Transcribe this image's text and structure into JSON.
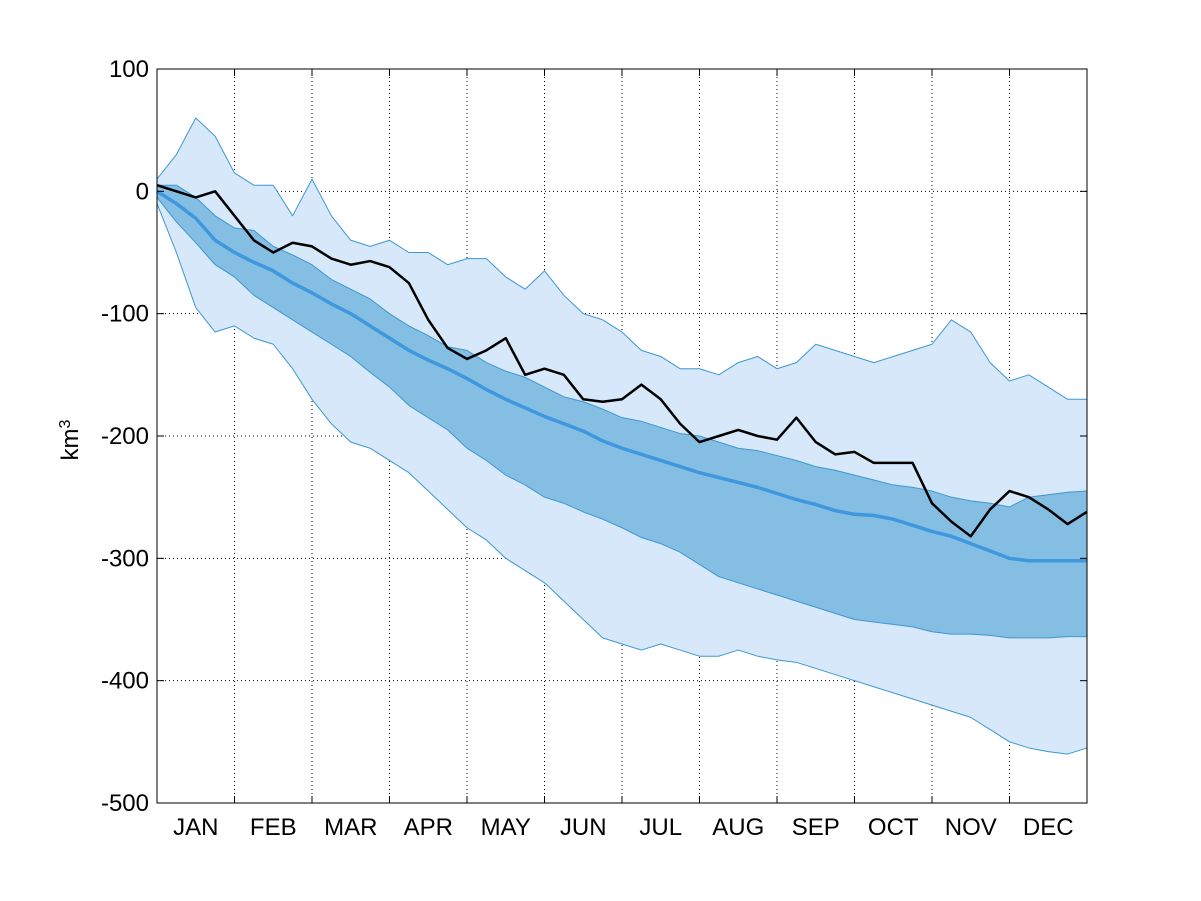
{
  "chart_data": {
    "type": "area",
    "ylabel": "km",
    "ylabel_superscript": "3",
    "ylim": [
      -500,
      100
    ],
    "yticks": [
      100,
      0,
      -100,
      -200,
      -300,
      -400,
      -500
    ],
    "xlim": [
      0,
      12
    ],
    "month_labels": [
      "JAN",
      "FEB",
      "MAR",
      "APR",
      "MAY",
      "JUN",
      "JUL",
      "AUG",
      "SEP",
      "OCT",
      "NOV",
      "DEC"
    ],
    "grid": true,
    "colors": {
      "outer_band": "#d6e8f9",
      "inner_band": "#85bee3",
      "band_edge": "#3e97d1",
      "mean": "#3f97dd",
      "current": "#000000"
    },
    "series": {
      "x": [
        0,
        0.25,
        0.5,
        0.75,
        1.0,
        1.25,
        1.5,
        1.75,
        2.0,
        2.25,
        2.5,
        2.75,
        3.0,
        3.25,
        3.5,
        3.75,
        4.0,
        4.25,
        4.5,
        4.75,
        5.0,
        5.25,
        5.5,
        5.75,
        6.0,
        6.25,
        6.5,
        6.75,
        7.0,
        7.25,
        7.5,
        7.75,
        8.0,
        8.25,
        8.5,
        8.75,
        9.0,
        9.25,
        9.5,
        9.75,
        10.0,
        10.25,
        10.5,
        10.75,
        11.0,
        11.25,
        11.5,
        11.75,
        12.0
      ],
      "mean": [
        0,
        -10,
        -22,
        -40,
        -50,
        -58,
        -65,
        -75,
        -83,
        -92,
        -100,
        -110,
        -120,
        -130,
        -138,
        -145,
        -153,
        -162,
        -170,
        -177,
        -184,
        -190,
        -196,
        -204,
        -210,
        -215,
        -220,
        -225,
        -230,
        -234,
        -238,
        -242,
        -247,
        -252,
        -256,
        -261,
        -264,
        -265,
        -268,
        -273,
        -278,
        -282,
        -288,
        -294,
        -300,
        -302,
        -302,
        -302,
        -302
      ],
      "current": [
        5,
        0,
        -5,
        0,
        -20,
        -40,
        -50,
        -42,
        -45,
        -55,
        -60,
        -57,
        -62,
        -75,
        -105,
        -128,
        -137,
        -130,
        -120,
        -150,
        -145,
        -150,
        -170,
        -172,
        -170,
        -158,
        -170,
        -190,
        -205,
        -200,
        -195,
        -200,
        -203,
        -185,
        -205,
        -215,
        -213,
        -222,
        -222,
        -222,
        -255,
        -270,
        -282,
        -260,
        -245,
        -250,
        -260,
        -272,
        -262
      ],
      "inner_upper": [
        5,
        5,
        -5,
        -20,
        -30,
        -32,
        -45,
        -52,
        -60,
        -72,
        -80,
        -88,
        -100,
        -110,
        -118,
        -127,
        -130,
        -140,
        -147,
        -152,
        -160,
        -168,
        -172,
        -178,
        -185,
        -188,
        -193,
        -198,
        -200,
        -205,
        -210,
        -212,
        -216,
        -220,
        -225,
        -228,
        -232,
        -236,
        -240,
        -242,
        -245,
        -250,
        -253,
        -255,
        -258,
        -250,
        -248,
        -246,
        -245
      ],
      "inner_lower": [
        -5,
        -25,
        -42,
        -60,
        -70,
        -85,
        -95,
        -105,
        -115,
        -125,
        -135,
        -148,
        -160,
        -175,
        -185,
        -195,
        -210,
        -220,
        -232,
        -240,
        -250,
        -255,
        -262,
        -268,
        -275,
        -283,
        -288,
        -295,
        -305,
        -315,
        -320,
        -325,
        -330,
        -335,
        -340,
        -345,
        -350,
        -352,
        -354,
        -356,
        -360,
        -362,
        -362,
        -363,
        -365,
        -365,
        -365,
        -364,
        -364
      ],
      "outer_upper": [
        10,
        30,
        60,
        45,
        15,
        5,
        5,
        -20,
        10,
        -20,
        -40,
        -45,
        -40,
        -50,
        -50,
        -60,
        -55,
        -55,
        -70,
        -80,
        -65,
        -85,
        -100,
        -105,
        -115,
        -130,
        -135,
        -145,
        -145,
        -150,
        -140,
        -135,
        -145,
        -140,
        -125,
        -130,
        -135,
        -140,
        -135,
        -130,
        -125,
        -105,
        -115,
        -140,
        -155,
        -150,
        -160,
        -170,
        -170
      ],
      "outer_lower": [
        -10,
        -50,
        -95,
        -115,
        -110,
        -120,
        -125,
        -145,
        -170,
        -190,
        -205,
        -210,
        -220,
        -230,
        -245,
        -260,
        -275,
        -285,
        -300,
        -310,
        -320,
        -335,
        -350,
        -365,
        -370,
        -375,
        -370,
        -375,
        -380,
        -380,
        -375,
        -380,
        -383,
        -385,
        -390,
        -395,
        -400,
        -405,
        -410,
        -415,
        -420,
        -425,
        -430,
        -440,
        -450,
        -455,
        -458,
        -460,
        -455
      ]
    }
  }
}
